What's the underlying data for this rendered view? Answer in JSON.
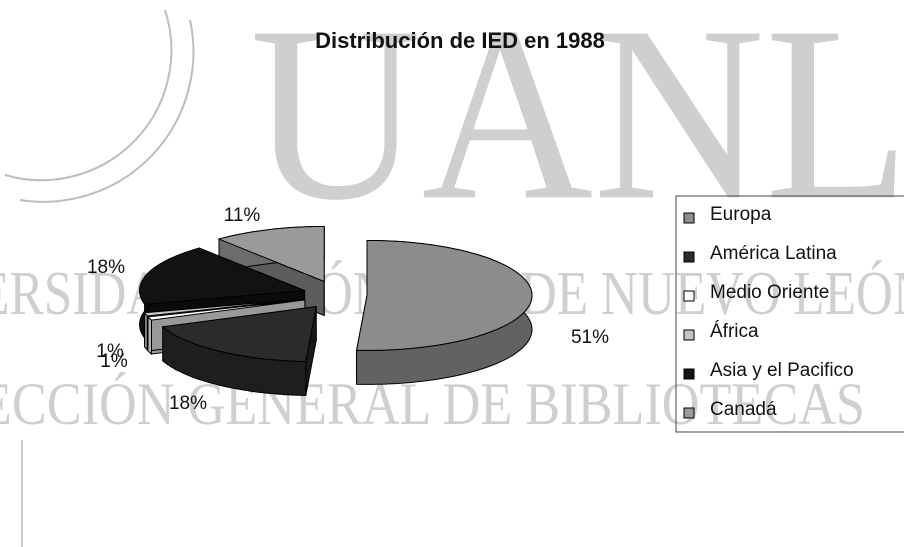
{
  "watermark": {
    "big": "UANL",
    "line1": "UNIVERSIDAD AUTÓNOMA DE NUEVO LEÓN",
    "line2": "DIRECCIÓN GENERAL DE BIBLIOTECAS"
  },
  "chart_data": {
    "type": "pie3d",
    "title": "Distribución de IED en 1988",
    "categories": [
      "Europa",
      "América Latina",
      "Medio Oriente",
      "África",
      "Asia y el Pacifico",
      "Canadá"
    ],
    "values": [
      51,
      18,
      1,
      1,
      18,
      11
    ],
    "value_labels": [
      "51%",
      "18%",
      "1%",
      "1%",
      "18%",
      "11%"
    ],
    "colors": [
      "#8c8c8c",
      "#2b2b2b",
      "#ffffff",
      "#c4c4c4",
      "#121212",
      "#9a9a9a"
    ],
    "legend": "right"
  }
}
